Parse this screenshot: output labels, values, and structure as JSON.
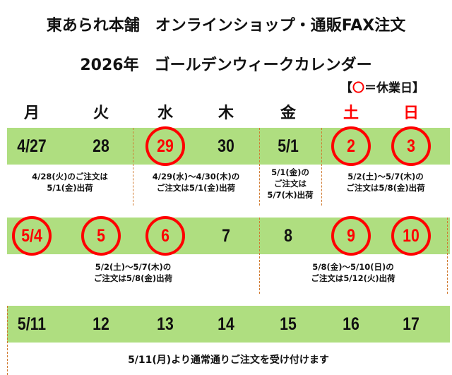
{
  "header": {
    "title": "東あられ本舗　オンラインショップ・通販FAX注文",
    "subtitle": "2026年　ゴールデンウィークカレンダー",
    "legend_open": "【",
    "legend_mark": "〇",
    "legend_text": "＝休業日】"
  },
  "weekdays": [
    "月",
    "火",
    "水",
    "木",
    "金",
    "土",
    "日"
  ],
  "colors": {
    "holiday": "#ff0000",
    "bar": "#afde80",
    "divider": "#d07a30"
  },
  "weeks": [
    {
      "days": [
        {
          "label": "4/27",
          "holiday": false
        },
        {
          "label": "28",
          "holiday": false
        },
        {
          "label": "29",
          "holiday": true
        },
        {
          "label": "30",
          "holiday": false
        },
        {
          "label": "5/1",
          "holiday": false
        },
        {
          "label": "2",
          "holiday": true
        },
        {
          "label": "3",
          "holiday": true
        }
      ],
      "notes": [
        "4/28(火)のご注文は\n5/1(金)出荷",
        "4/29(水)～4/30(木)の\nご注文は5/1(金)出荷",
        "5/1(金)の\nご注文は\n5/7(木)出荷",
        "5/2(土)～5/7(木)の\nご注文は5/8(金)出荷"
      ]
    },
    {
      "days": [
        {
          "label": "5/4",
          "holiday": true
        },
        {
          "label": "5",
          "holiday": true
        },
        {
          "label": "6",
          "holiday": true
        },
        {
          "label": "7",
          "holiday": false
        },
        {
          "label": "8",
          "holiday": false
        },
        {
          "label": "9",
          "holiday": true
        },
        {
          "label": "10",
          "holiday": true
        }
      ],
      "notes": [
        "5/2(土)～5/7(木)の\nご注文は5/8(金)出荷",
        "5/8(金)～5/10(日)の\nご注文は5/12(火)出荷"
      ]
    },
    {
      "days": [
        {
          "label": "5/11",
          "holiday": false
        },
        {
          "label": "12",
          "holiday": false
        },
        {
          "label": "13",
          "holiday": false
        },
        {
          "label": "14",
          "holiday": false
        },
        {
          "label": "15",
          "holiday": false
        },
        {
          "label": "16",
          "holiday": false
        },
        {
          "label": "17",
          "holiday": false
        }
      ],
      "notes": [
        "5/11(月)より通常通りご注文を受け付けます"
      ]
    }
  ]
}
